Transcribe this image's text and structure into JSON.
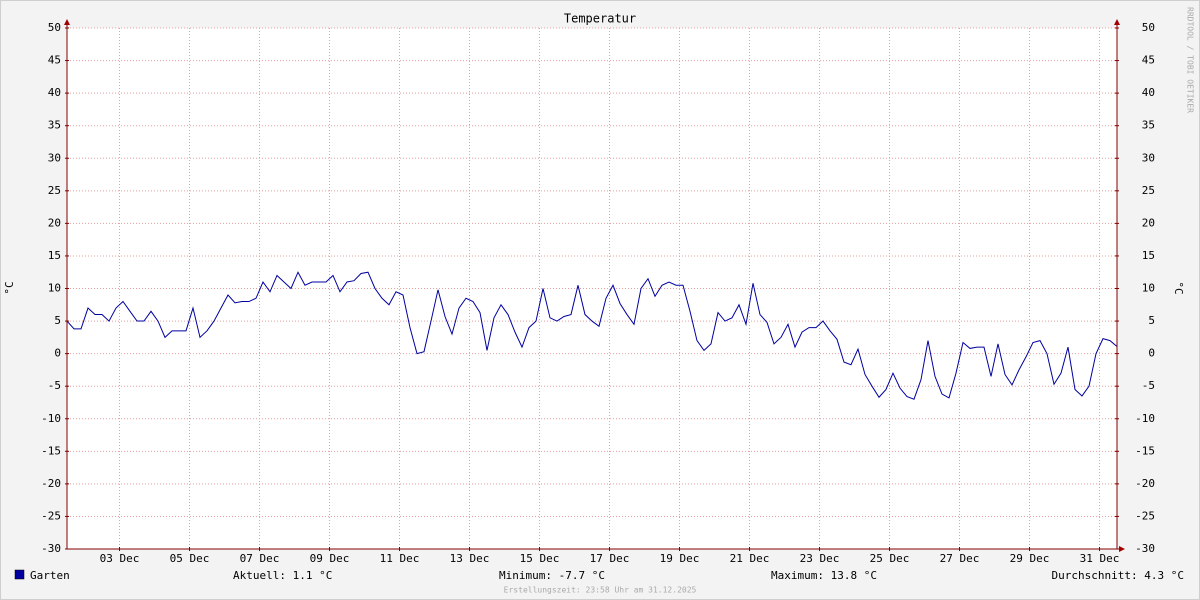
{
  "chart_data": {
    "type": "line",
    "title": "Temperatur",
    "ylabel": "°C",
    "watermark": "RRDTOOL / TOBI OETIKER",
    "x": [
      2,
      2.2,
      2.4,
      2.6,
      2.8,
      3,
      3.2,
      3.4,
      3.6,
      3.8,
      4,
      4.2,
      4.4,
      4.6,
      4.8,
      5,
      5.2,
      5.4,
      5.6,
      5.8,
      6,
      6.2,
      6.4,
      6.6,
      6.8,
      7,
      7.2,
      7.4,
      7.6,
      7.8,
      8,
      8.2,
      8.4,
      8.6,
      8.8,
      9,
      9.2,
      9.4,
      9.6,
      9.8,
      10,
      10.2,
      10.4,
      10.6,
      10.8,
      11,
      11.2,
      11.4,
      11.6,
      11.8,
      12,
      12.2,
      12.4,
      12.6,
      12.8,
      13,
      13.2,
      13.4,
      13.6,
      13.8,
      14,
      14.2,
      14.4,
      14.6,
      14.8,
      15,
      15.2,
      15.4,
      15.6,
      15.8,
      16,
      16.2,
      16.4,
      16.6,
      16.8,
      17,
      17.2,
      17.4,
      17.6,
      17.8,
      18,
      18.2,
      18.4,
      18.6,
      18.8,
      19,
      19.2,
      19.4,
      19.6,
      19.8,
      20,
      20.2,
      20.4,
      20.6,
      20.8,
      21,
      21.2,
      21.4,
      21.6,
      21.8,
      22,
      22.2,
      22.4,
      22.6,
      22.8,
      23,
      23.2,
      23.4,
      23.6,
      23.8,
      24,
      24.2,
      24.4,
      24.6,
      24.8,
      25,
      25.2,
      25.4,
      25.6,
      25.8,
      26,
      26.2,
      26.4,
      26.6,
      26.8,
      27,
      27.2,
      27.4,
      27.6,
      27.8,
      28,
      28.2,
      28.4,
      28.6,
      28.8,
      29,
      29.2,
      29.4,
      29.6,
      29.8,
      30,
      30.2,
      30.4,
      30.6,
      30.8,
      31,
      31.2,
      31.4,
      31.6,
      31.8,
      32
    ],
    "series": [
      {
        "name": "Garten",
        "color": "#0000a0",
        "values": [
          5,
          3.8,
          3.8,
          7,
          6,
          6,
          5,
          7,
          8,
          6.5,
          5,
          5,
          6.5,
          5,
          2.5,
          3.5,
          3.5,
          3.5,
          7,
          2.5,
          3.5,
          5,
          7,
          9,
          7.8,
          8,
          8,
          8.5,
          11,
          9.5,
          12,
          11,
          10,
          12.5,
          10.5,
          11,
          11,
          11,
          12,
          9.5,
          11,
          11.2,
          12.3,
          12.5,
          10,
          8.5,
          7.5,
          9.5,
          9,
          4,
          0,
          0.3,
          5,
          9.8,
          5.7,
          3,
          7,
          8.5,
          8,
          6.3,
          0.5,
          5.5,
          7.5,
          6,
          3.3,
          1,
          4,
          5,
          10,
          5.5,
          5,
          5.7,
          6,
          10.5,
          6,
          5,
          4.2,
          8.5,
          10.5,
          7.7,
          6,
          4.5,
          10,
          11.5,
          8.8,
          10.5,
          11,
          10.5,
          10.5,
          6.5,
          2,
          0.5,
          1.5,
          6.3,
          5,
          5.5,
          7.5,
          4.5,
          10.8,
          6,
          4.8,
          1.5,
          2.5,
          4.5,
          1,
          3.3,
          4,
          4,
          5,
          3.5,
          2.2,
          -1.3,
          -1.7,
          0.7,
          -3.2,
          -5,
          -6.7,
          -5.5,
          -3,
          -5.3,
          -6.6,
          -7,
          -4,
          2,
          -3.5,
          -6.2,
          -6.8,
          -3,
          1.7,
          0.8,
          1,
          1,
          -3.5,
          1.5,
          -3.2,
          -4.8,
          -2.5,
          -0.5,
          1.7,
          2,
          0,
          -4.7,
          -3,
          1,
          -5.5,
          -6.5,
          -5,
          0,
          2.3,
          2,
          1.1
        ]
      }
    ],
    "xlim": [
      2,
      32
    ],
    "xticks": [
      {
        "value": 3.5,
        "label": "03 Dec"
      },
      {
        "value": 5.5,
        "label": "05 Dec"
      },
      {
        "value": 7.5,
        "label": "07 Dec"
      },
      {
        "value": 9.5,
        "label": "09 Dec"
      },
      {
        "value": 11.5,
        "label": "11 Dec"
      },
      {
        "value": 13.5,
        "label": "13 Dec"
      },
      {
        "value": 15.5,
        "label": "15 Dec"
      },
      {
        "value": 17.5,
        "label": "17 Dec"
      },
      {
        "value": 19.5,
        "label": "19 Dec"
      },
      {
        "value": 21.5,
        "label": "21 Dec"
      },
      {
        "value": 23.5,
        "label": "23 Dec"
      },
      {
        "value": 25.5,
        "label": "25 Dec"
      },
      {
        "value": 27.5,
        "label": "27 Dec"
      },
      {
        "value": 29.5,
        "label": "29 Dec"
      },
      {
        "value": 31.5,
        "label": "31 Dec"
      }
    ],
    "ylim": [
      -30,
      50
    ],
    "yticks": [
      -30,
      -25,
      -20,
      -15,
      -10,
      -5,
      0,
      5,
      10,
      15,
      20,
      25,
      30,
      35,
      40,
      45,
      50
    ],
    "grid": true,
    "stats": [
      "Aktuell: 1.1 °C",
      "Minimum: -7.7 °C",
      "Maximum: 13.8 °C",
      "Durchschnitt: 4.3 °C"
    ],
    "footer": "Erstellungszeit: 23:58 Uhr am 31.12.2025"
  }
}
